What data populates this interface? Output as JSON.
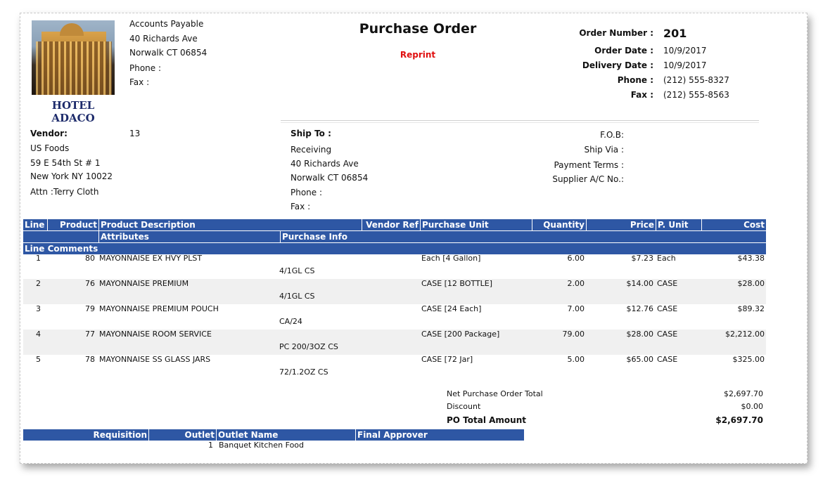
{
  "company": {
    "logo_text": "HOTEL ADACO",
    "lines": [
      "Accounts Payable",
      "40 Richards Ave",
      "Norwalk CT 06854",
      "Phone :",
      "Fax :"
    ]
  },
  "document": {
    "title": "Purchase Order",
    "status": "Reprint"
  },
  "order_info": [
    {
      "label": "Order Number :",
      "value": "201"
    },
    {
      "label": "Order Date :",
      "value": "10/9/2017"
    },
    {
      "label": "Delivery Date :",
      "value": "10/9/2017"
    },
    {
      "label": "Phone :",
      "value": "(212) 555-8327"
    },
    {
      "label": "Fax :",
      "value": "(212) 555-8563"
    }
  ],
  "vendor": {
    "label": "Vendor:",
    "id": "13",
    "name": "US Foods",
    "address1": "59 E 54th St # 1",
    "address2": "New York NY 10022",
    "attn": "Attn :Terry Cloth"
  },
  "ship_to": {
    "label": "Ship To :",
    "lines": [
      "Receiving",
      "40 Richards Ave",
      "Norwalk CT 06854",
      "Phone :",
      "Fax :"
    ]
  },
  "terms": {
    "fob": "F.O.B:",
    "ship_via": "Ship Via :",
    "payment_terms": "Payment Terms :",
    "supplier_acct": "Supplier A/C No.:"
  },
  "table": {
    "headers": {
      "line": "Line",
      "product": "Product",
      "description": "Product Description",
      "vendor_ref": "Vendor Ref",
      "purchase_unit": "Purchase Unit",
      "quantity": "Quantity",
      "price": "Price",
      "p_unit": "P. Unit",
      "cost": "Cost",
      "attributes": "Attributes",
      "purchase_info": "Purchase Info",
      "line_comments": "Line Comments"
    },
    "rows": [
      {
        "line": "1",
        "product": "80",
        "description": "MAYONNAISE EX HVY PLST",
        "purchase_unit": "Each [4 Gallon]",
        "quantity": "6.00",
        "price": "$7.23",
        "p_unit": "Each",
        "cost": "$43.38",
        "info": "4/1GL CS"
      },
      {
        "line": "2",
        "product": "76",
        "description": "MAYONNAISE PREMIUM",
        "purchase_unit": "CASE [12 BOTTLE]",
        "quantity": "2.00",
        "price": "$14.00",
        "p_unit": "CASE",
        "cost": "$28.00",
        "info": "4/1GL CS"
      },
      {
        "line": "3",
        "product": "79",
        "description": "MAYONNAISE PREMIUM POUCH",
        "purchase_unit": "CASE [24 Each]",
        "quantity": "7.00",
        "price": "$12.76",
        "p_unit": "CASE",
        "cost": "$89.32",
        "info": "CA/24"
      },
      {
        "line": "4",
        "product": "77",
        "description": "MAYONNAISE ROOM SERVICE",
        "purchase_unit": "CASE [200 Package]",
        "quantity": "79.00",
        "price": "$28.00",
        "p_unit": "CASE",
        "cost": "$2,212.00",
        "info": "PC 200/3OZ CS"
      },
      {
        "line": "5",
        "product": "78",
        "description": "MAYONNAISE SS GLASS JARS",
        "purchase_unit": "CASE [72 Jar]",
        "quantity": "5.00",
        "price": "$65.00",
        "p_unit": "CASE",
        "cost": "$325.00",
        "info": "72/1.2OZ CS"
      }
    ]
  },
  "totals": {
    "net_label": "Net Purchase Order Total",
    "net_value": "$2,697.70",
    "discount_label": "Discount",
    "discount_value": "$0.00",
    "po_total_label": "PO Total Amount",
    "po_total_value": "$2,697.70"
  },
  "requisition": {
    "headers": {
      "requisition": "Requisition",
      "outlet": "Outlet",
      "outlet_name": "Outlet Name",
      "final_approver": "Final Approver"
    },
    "row": {
      "requisition": "",
      "outlet": "1",
      "outlet_name": "Banquet Kitchen Food",
      "final_approver": ""
    }
  },
  "colors": {
    "header_bg": "#2e57a4",
    "reprint": "#e01010",
    "logo_text": "#1d2b6b"
  }
}
